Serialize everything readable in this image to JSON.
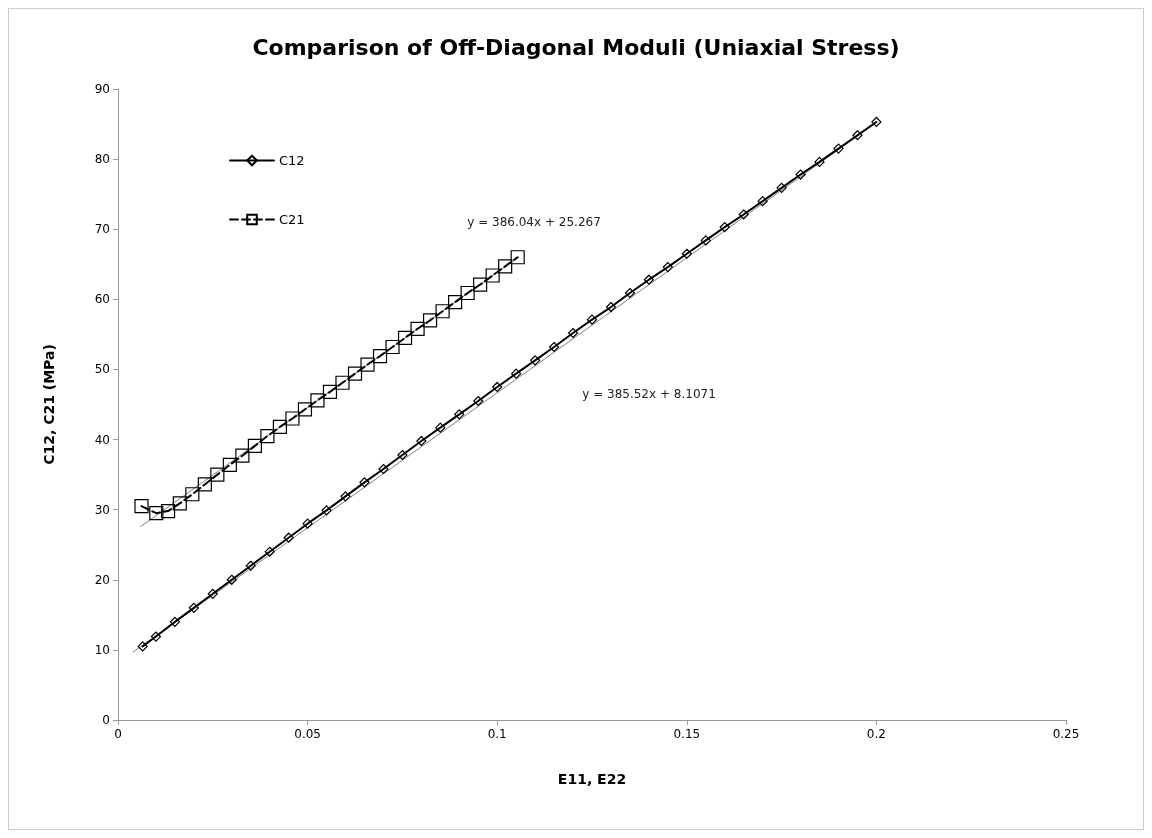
{
  "chart_data": {
    "type": "line",
    "title": "Comparison of Off-Diagonal Moduli (Uniaxial Stress)",
    "xlabel": "E11, E22",
    "ylabel": "C12, C21 (MPa)",
    "xlim": [
      0,
      0.25
    ],
    "xticks": [
      0,
      0.05,
      0.1,
      0.15,
      0.2,
      0.25
    ],
    "ylim": [
      0,
      90
    ],
    "yticks": [
      0,
      10,
      20,
      30,
      40,
      50,
      60,
      70,
      80,
      90
    ],
    "grid": false,
    "legend": "top left",
    "series": [
      {
        "name": "C12",
        "color": "#000000",
        "marker": "diamond",
        "line_style": "solid",
        "x": [
          0.0065,
          0.01,
          0.015,
          0.02,
          0.025,
          0.03,
          0.035,
          0.04,
          0.045,
          0.05,
          0.055,
          0.06,
          0.065,
          0.07,
          0.075,
          0.08,
          0.085,
          0.09,
          0.095,
          0.1,
          0.105,
          0.11,
          0.115,
          0.12,
          0.125,
          0.13,
          0.135,
          0.14,
          0.145,
          0.15,
          0.155,
          0.16,
          0.165,
          0.17,
          0.175,
          0.18,
          0.185,
          0.19,
          0.195,
          0.2
        ],
        "values": [
          10.5,
          11.9,
          14.0,
          16.0,
          18.0,
          20.0,
          22.0,
          24.0,
          26.0,
          28.0,
          29.9,
          31.9,
          33.9,
          35.8,
          37.8,
          39.8,
          41.7,
          43.6,
          45.5,
          47.5,
          49.4,
          51.3,
          53.2,
          55.2,
          57.1,
          58.9,
          60.9,
          62.8,
          64.6,
          66.5,
          68.4,
          70.3,
          72.1,
          74.0,
          75.9,
          77.8,
          79.6,
          81.5,
          83.4,
          85.3
        ]
      },
      {
        "name": "C21",
        "color": "#000000",
        "marker": "square",
        "line_style": "dashed",
        "x": [
          0.0062,
          0.0101,
          0.0132,
          0.0163,
          0.0196,
          0.0229,
          0.0262,
          0.0295,
          0.0328,
          0.0361,
          0.0394,
          0.0427,
          0.046,
          0.0493,
          0.0526,
          0.0559,
          0.0592,
          0.0625,
          0.0658,
          0.0691,
          0.0724,
          0.0757,
          0.079,
          0.0823,
          0.0856,
          0.0889,
          0.0922,
          0.0955,
          0.0988,
          0.1021,
          0.1054
        ],
        "values": [
          30.5,
          29.5,
          29.8,
          30.9,
          32.2,
          33.6,
          35.0,
          36.4,
          37.7,
          39.1,
          40.5,
          41.8,
          43.0,
          44.3,
          45.6,
          46.8,
          48.1,
          49.4,
          50.7,
          51.9,
          53.2,
          54.5,
          55.8,
          57.0,
          58.3,
          59.6,
          60.9,
          62.1,
          63.4,
          64.7,
          66.0
        ]
      },
      {
        "type": "line",
        "color": "#808080",
        "marker": "none",
        "line_style": "solid",
        "x": [
          0.004,
          0.2
        ],
        "values": [
          9.7,
          85.2
        ]
      },
      {
        "type": "line",
        "color": "#808080",
        "marker": "none",
        "line_style": "solid",
        "x": [
          0.006,
          0.105
        ],
        "values": [
          27.6,
          65.8
        ]
      }
    ],
    "annotations": [
      "y = 386.04x + 25.267",
      "y = 385.52x + 8.1071"
    ]
  }
}
